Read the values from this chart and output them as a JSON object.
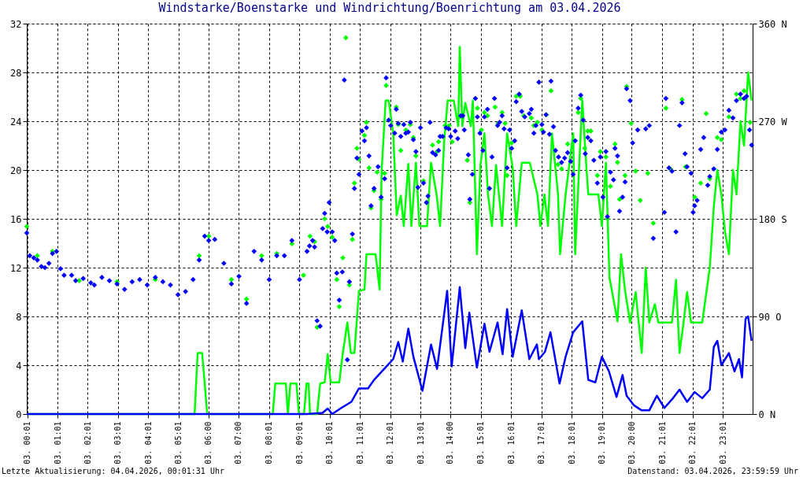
{
  "chart_data": {
    "type": "line",
    "title": "Windstarke/Boenstarke und Windrichtung/Boenrichtung am 03.04.2026",
    "annotations": [
      "Letzte Aktualisierung: 04.04.2026, 00:01:31 Uhr",
      "Datenstand: 03.04.2026, 23:59:59 Uhr"
    ],
    "xlim": [
      "2026-04-03T00:00",
      "2026-04-04T00:00"
    ],
    "xticks": [
      {
        "value": "2026-04-03T00:01",
        "label": "03. 00:01"
      },
      {
        "value": "2026-04-03T01:01",
        "label": "03. 01:01"
      },
      {
        "value": "2026-04-03T02:01",
        "label": "03. 02:01"
      },
      {
        "value": "2026-04-03T03:01",
        "label": "03. 03:01"
      },
      {
        "value": "2026-04-03T04:01",
        "label": "03. 04:01"
      },
      {
        "value": "2026-04-03T05:01",
        "label": "03. 05:01"
      },
      {
        "value": "2026-04-03T06:00",
        "label": "03. 06:00"
      },
      {
        "value": "2026-04-03T07:00",
        "label": "03. 07:00"
      },
      {
        "value": "2026-04-03T08:01",
        "label": "03. 08:01"
      },
      {
        "value": "2026-04-03T09:01",
        "label": "03. 09:01"
      },
      {
        "value": "2026-04-03T10:01",
        "label": "03. 10:01"
      },
      {
        "value": "2026-04-03T11:01",
        "label": "03. 11:01"
      },
      {
        "value": "2026-04-03T12:01",
        "label": "03. 12:01"
      },
      {
        "value": "2026-04-03T13:01",
        "label": "03. 13:01"
      },
      {
        "value": "2026-04-03T14:00",
        "label": "03. 14:00"
      },
      {
        "value": "2026-04-03T15:01",
        "label": "03. 15:01"
      },
      {
        "value": "2026-04-03T16:01",
        "label": "03. 16:01"
      },
      {
        "value": "2026-04-03T17:01",
        "label": "03. 17:01"
      },
      {
        "value": "2026-04-03T18:01",
        "label": "03. 18:01"
      },
      {
        "value": "2026-04-03T19:01",
        "label": "03. 19:01"
      },
      {
        "value": "2026-04-03T20:00",
        "label": "03. 20:00"
      },
      {
        "value": "2026-04-03T21:01",
        "label": "03. 21:01"
      },
      {
        "value": "2026-04-03T22:01",
        "label": "03. 22:01"
      },
      {
        "value": "2026-04-03T23:01",
        "label": "03. 23:01"
      }
    ],
    "ylim": [
      0,
      32
    ],
    "yticks": [
      0,
      4,
      8,
      12,
      16,
      20,
      24,
      28,
      32
    ],
    "y2lim": [
      0,
      360
    ],
    "y2ticks": [
      {
        "value": 0,
        "label": "0 N"
      },
      {
        "value": 90,
        "label": "90 O"
      },
      {
        "value": 180,
        "label": "180 S"
      },
      {
        "value": 270,
        "label": "270 W"
      },
      {
        "value": 360,
        "label": "360 N"
      }
    ],
    "grid": true,
    "series": [
      {
        "color": "#00ff00",
        "x": [
          "2026-04-03T00:00",
          "2026-04-03T05:33",
          "2026-04-03T05:39",
          "2026-04-03T05:48",
          "2026-04-03T05:58",
          "2026-04-03T08:08",
          "2026-04-03T08:13",
          "2026-04-03T08:34",
          "2026-04-03T08:38",
          "2026-04-03T08:43",
          "2026-04-03T08:55",
          "2026-04-03T09:00",
          "2026-04-03T09:10",
          "2026-04-03T09:15",
          "2026-04-03T09:19",
          "2026-04-03T09:22",
          "2026-04-03T09:36",
          "2026-04-03T09:42",
          "2026-04-03T09:51",
          "2026-04-03T09:57",
          "2026-04-03T10:03",
          "2026-04-03T10:20",
          "2026-04-03T10:27",
          "2026-04-03T10:36",
          "2026-04-03T10:43",
          "2026-04-03T10:50",
          "2026-04-03T10:59",
          "2026-04-03T11:10",
          "2026-04-03T11:14",
          "2026-04-03T11:32",
          "2026-04-03T11:40",
          "2026-04-03T11:44",
          "2026-04-03T11:52",
          "2026-04-03T11:58",
          "2026-04-03T12:07",
          "2026-04-03T12:14",
          "2026-04-03T12:22",
          "2026-04-03T12:28",
          "2026-04-03T12:37",
          "2026-04-03T12:43",
          "2026-04-03T12:52",
          "2026-04-03T12:59",
          "2026-04-03T13:14",
          "2026-04-03T13:22",
          "2026-04-03T13:33",
          "2026-04-03T13:40",
          "2026-04-03T13:48",
          "2026-04-03T13:55",
          "2026-04-03T14:07",
          "2026-04-03T14:16",
          "2026-04-03T14:19",
          "2026-04-03T14:24",
          "2026-04-03T14:30",
          "2026-04-03T14:41",
          "2026-04-03T14:45",
          "2026-04-03T14:53",
          "2026-04-03T15:00",
          "2026-04-03T15:08",
          "2026-04-03T15:15",
          "2026-04-03T15:23",
          "2026-04-03T15:31",
          "2026-04-03T15:43",
          "2026-04-03T15:53",
          "2026-04-03T16:04",
          "2026-04-03T16:11",
          "2026-04-03T16:22",
          "2026-04-03T16:38",
          "2026-04-03T16:53",
          "2026-04-03T16:59",
          "2026-04-03T17:07",
          "2026-04-03T17:14",
          "2026-04-03T17:22",
          "2026-04-03T17:34",
          "2026-04-03T17:38",
          "2026-04-03T17:49",
          "2026-04-03T18:04",
          "2026-04-03T18:08",
          "2026-04-03T18:16",
          "2026-04-03T18:22",
          "2026-04-03T18:30",
          "2026-04-03T18:34",
          "2026-04-03T18:54",
          "2026-04-03T19:01",
          "2026-04-03T19:09",
          "2026-04-03T19:16",
          "2026-04-03T19:32",
          "2026-04-03T19:39",
          "2026-04-03T19:47",
          "2026-04-03T19:57",
          "2026-04-03T20:08",
          "2026-04-03T20:20",
          "2026-04-03T20:28",
          "2026-04-03T20:35",
          "2026-04-03T20:46",
          "2026-04-03T20:53",
          "2026-04-03T21:20",
          "2026-04-03T21:28",
          "2026-04-03T21:35",
          "2026-04-03T21:43",
          "2026-04-03T21:50",
          "2026-04-03T21:58",
          "2026-04-03T22:20",
          "2026-04-03T22:35",
          "2026-04-03T22:43",
          "2026-04-03T22:50",
          "2026-04-03T22:58",
          "2026-04-03T23:05",
          "2026-04-03T23:13",
          "2026-04-03T23:21",
          "2026-04-03T23:28",
          "2026-04-03T23:36",
          "2026-04-03T23:43",
          "2026-04-03T23:51",
          "2026-04-03T23:58"
        ],
        "values": [
          0,
          0,
          5,
          5,
          0,
          0,
          2.5,
          2.5,
          0,
          2.5,
          2.5,
          0,
          0,
          2.5,
          2.5,
          0,
          0,
          2.5,
          2.6,
          4.9,
          2.6,
          2.6,
          5.0,
          7.5,
          5.0,
          5.0,
          10.1,
          10.2,
          13.1,
          13.1,
          10.2,
          19.9,
          25.7,
          25.7,
          23.0,
          16.3,
          17.9,
          15.4,
          20.5,
          15.4,
          20.6,
          15.4,
          15.4,
          20.6,
          18.0,
          15.4,
          22.3,
          25.7,
          25.7,
          23.6,
          30.1,
          23.6,
          25.5,
          23.6,
          25.7,
          13.1,
          20.4,
          23.0,
          18.0,
          15.4,
          20.4,
          15.4,
          23.0,
          20.2,
          15.4,
          20.6,
          20.6,
          18.0,
          15.4,
          18.0,
          15.4,
          23.0,
          18.0,
          13.1,
          18.0,
          23.0,
          13.1,
          20.4,
          25.7,
          20.4,
          18.0,
          18.0,
          15.4,
          20.6,
          11.2,
          7.6,
          13.1,
          10.1,
          7.5,
          10.0,
          5.0,
          12.0,
          7.5,
          9.0,
          7.5,
          7.5,
          11.0,
          5.0,
          7.5,
          10.0,
          7.5,
          7.5,
          12.0,
          17.0,
          20.0,
          18.0,
          15.0,
          13.1,
          20.0,
          18.0,
          24.0,
          22.0,
          28.0,
          25.7
        ]
      },
      {
        "color": "#0000ff",
        "x": [
          "2026-04-03T00:00",
          "2026-04-03T09:16",
          "2026-04-03T09:47",
          "2026-04-03T09:57",
          "2026-04-03T10:06",
          "2026-04-03T10:24",
          "2026-04-03T10:44",
          "2026-04-03T10:59",
          "2026-04-03T11:17",
          "2026-04-03T11:29",
          "2026-04-03T11:47",
          "2026-04-03T12:07",
          "2026-04-03T12:17",
          "2026-04-03T12:26",
          "2026-04-03T12:37",
          "2026-04-03T12:47",
          "2026-04-03T13:05",
          "2026-04-03T13:22",
          "2026-04-03T13:34",
          "2026-04-03T13:54",
          "2026-04-03T14:03",
          "2026-04-03T14:19",
          "2026-04-03T14:30",
          "2026-04-03T14:38",
          "2026-04-03T14:53",
          "2026-04-03T15:08",
          "2026-04-03T15:18",
          "2026-04-03T15:34",
          "2026-04-03T15:44",
          "2026-04-03T15:53",
          "2026-04-03T16:04",
          "2026-04-03T16:22",
          "2026-04-03T16:37",
          "2026-04-03T16:52",
          "2026-04-03T16:56",
          "2026-04-03T17:08",
          "2026-04-03T17:19",
          "2026-04-03T17:37",
          "2026-04-03T17:49",
          "2026-04-03T18:04",
          "2026-04-03T18:22",
          "2026-04-03T18:34",
          "2026-04-03T18:48",
          "2026-04-03T19:01",
          "2026-04-03T19:15",
          "2026-04-03T19:30",
          "2026-04-03T19:42",
          "2026-04-03T19:50",
          "2026-04-03T20:05",
          "2026-04-03T20:20",
          "2026-04-03T20:35",
          "2026-04-03T20:50",
          "2026-04-03T21:05",
          "2026-04-03T21:20",
          "2026-04-03T21:35",
          "2026-04-03T21:50",
          "2026-04-03T22:05",
          "2026-04-03T22:20",
          "2026-04-03T22:35",
          "2026-04-03T22:43",
          "2026-04-03T22:50",
          "2026-04-03T22:58",
          "2026-04-03T23:13",
          "2026-04-03T23:24",
          "2026-04-03T23:33",
          "2026-04-03T23:39",
          "2026-04-03T23:46",
          "2026-04-03T23:51",
          "2026-04-03T23:58"
        ],
        "values": [
          0,
          0,
          0.1,
          0.45,
          0,
          0.5,
          1.0,
          2.1,
          2.1,
          2.8,
          3.6,
          4.5,
          5.9,
          4.3,
          7.0,
          4.7,
          1.9,
          5.7,
          3.7,
          10.1,
          3.9,
          10.4,
          5.4,
          8.3,
          3.8,
          7.4,
          5.1,
          7.5,
          4.9,
          8.6,
          4.7,
          8.5,
          4.5,
          5.7,
          4.5,
          5.1,
          6.7,
          2.5,
          4.7,
          6.7,
          7.6,
          2.8,
          2.6,
          4.7,
          3.5,
          1.4,
          3.2,
          1.5,
          0.7,
          0.3,
          0.3,
          1.5,
          0.5,
          1.2,
          2.0,
          1.0,
          1.8,
          1.3,
          2.0,
          5.5,
          6.0,
          4.0,
          5.0,
          3.5,
          4.5,
          3.0,
          7.8,
          8.0,
          6.0
        ]
      },
      {
        "type": "scatter",
        "axis": "y2",
        "marker": "diamond",
        "color": "#00ff00",
        "x": [
          "2026-04-03T00:00",
          "2026-04-03T00:21",
          "2026-04-03T00:51",
          "2026-04-03T01:44",
          "2026-04-03T02:59",
          "2026-04-03T04:15",
          "2026-04-03T05:42",
          "2026-04-03T06:01",
          "2026-04-03T06:46",
          "2026-04-03T07:16",
          "2026-04-03T07:46",
          "2026-04-03T08:16",
          "2026-04-03T08:46",
          "2026-04-03T09:09",
          "2026-04-03T09:22",
          "2026-04-03T09:31",
          "2026-04-03T09:36",
          "2026-04-03T09:51",
          "2026-04-03T09:57",
          "2026-04-03T10:06",
          "2026-04-03T10:15",
          "2026-04-03T10:20",
          "2026-04-03T10:27",
          "2026-04-03T10:33",
          "2026-04-03T10:40",
          "2026-04-03T10:46",
          "2026-04-03T10:50",
          "2026-04-03T10:55",
          "2026-04-03T10:59",
          "2026-04-03T11:10",
          "2026-04-03T11:14",
          "2026-04-03T11:19",
          "2026-04-03T11:23",
          "2026-04-03T11:29",
          "2026-04-03T11:35",
          "2026-04-03T11:43",
          "2026-04-03T11:50",
          "2026-04-03T11:53",
          "2026-04-03T12:13",
          "2026-04-03T12:17",
          "2026-04-03T12:22",
          "2026-04-03T12:32",
          "2026-04-03T12:41",
          "2026-04-03T12:47",
          "2026-04-03T12:52",
          "2026-04-03T13:07",
          "2026-04-03T13:13",
          "2026-04-03T13:25",
          "2026-04-03T13:34",
          "2026-04-03T13:37",
          "2026-04-03T13:50",
          "2026-04-03T13:58",
          "2026-04-03T14:04",
          "2026-04-03T14:18",
          "2026-04-03T14:34",
          "2026-04-03T14:39",
          "2026-04-03T14:54",
          "2026-04-03T15:02",
          "2026-04-03T15:08",
          "2026-04-03T15:14",
          "2026-04-03T15:29",
          "2026-04-03T15:35",
          "2026-04-03T15:43",
          "2026-04-03T15:49",
          "2026-04-03T15:53",
          "2026-04-03T16:02",
          "2026-04-03T16:11",
          "2026-04-03T16:19",
          "2026-04-03T16:26",
          "2026-04-03T16:41",
          "2026-04-03T16:46",
          "2026-04-03T16:53",
          "2026-04-03T17:02",
          "2026-04-03T17:11",
          "2026-04-03T17:20",
          "2026-04-03T17:34",
          "2026-04-03T17:41",
          "2026-04-03T17:53",
          "2026-04-03T18:14",
          "2026-04-03T18:19",
          "2026-04-03T18:27",
          "2026-04-03T18:33",
          "2026-04-03T18:39",
          "2026-04-03T18:52",
          "2026-04-03T18:58",
          "2026-04-03T19:09",
          "2026-04-03T19:12",
          "2026-04-03T19:18",
          "2026-04-03T19:27",
          "2026-04-03T19:32",
          "2026-04-03T19:36",
          "2026-04-03T19:47",
          "2026-04-03T19:50",
          "2026-04-03T19:59",
          "2026-04-03T20:08",
          "2026-04-03T20:17",
          "2026-04-03T20:32",
          "2026-04-03T20:43",
          "2026-04-03T21:08",
          "2026-04-03T21:17",
          "2026-04-03T21:40",
          "2026-04-03T21:47",
          "2026-04-03T21:58",
          "2026-04-03T22:05",
          "2026-04-03T22:17",
          "2026-04-03T22:28",
          "2026-04-03T22:35",
          "2026-04-03T22:50",
          "2026-04-03T22:58",
          "2026-04-03T23:13",
          "2026-04-03T23:28",
          "2026-04-03T23:36",
          "2026-04-03T23:43",
          "2026-04-03T23:55"
        ],
        "values": [
          173,
          146,
          150,
          123,
          122,
          124,
          146,
          164,
          124,
          106,
          146,
          148,
          157,
          128,
          164,
          159,
          80,
          180,
          173,
          163,
          124,
          99,
          144,
          347,
          119,
          161,
          213,
          245,
          235,
          257,
          269,
          227,
          190,
          206,
          223,
          198,
          222,
          303,
          283,
          267,
          243,
          262,
          267,
          255,
          238,
          215,
          195,
          248,
          242,
          251,
          266,
          266,
          251,
          274,
          234,
          195,
          282,
          262,
          278,
          275,
          283,
          268,
          278,
          268,
          220,
          250,
          293,
          293,
          275,
          273,
          266,
          269,
          262,
          276,
          298,
          230,
          226,
          249,
          278,
          291,
          245,
          261,
          261,
          220,
          242,
          237,
          180,
          210,
          249,
          232,
          198,
          220,
          302,
          268,
          224,
          197,
          222,
          176,
          282,
          226,
          290,
          228,
          null,
          200,
          213,
          277,
          217,
          255,
          253,
          274,
          295,
          291,
          298,
          269
        ]
      },
      {
        "type": "scatter",
        "axis": "y2",
        "marker": "diamond",
        "color": "#0000ff",
        "x": [
          "2026-04-03T00:00",
          "2026-04-03T00:06",
          "2026-04-03T00:14",
          "2026-04-03T00:21",
          "2026-04-03T00:29",
          "2026-04-03T00:36",
          "2026-04-03T00:44",
          "2026-04-03T00:51",
          "2026-04-03T00:59",
          "2026-04-03T01:07",
          "2026-04-03T01:14",
          "2026-04-03T01:29",
          "2026-04-03T01:37",
          "2026-04-03T01:52",
          "2026-04-03T02:07",
          "2026-04-03T02:14",
          "2026-04-03T02:29",
          "2026-04-03T02:44",
          "2026-04-03T02:59",
          "2026-04-03T03:14",
          "2026-04-03T03:29",
          "2026-04-03T03:44",
          "2026-04-03T03:59",
          "2026-04-03T04:15",
          "2026-04-03T04:30",
          "2026-04-03T04:45",
          "2026-04-03T05:00",
          "2026-04-03T05:15",
          "2026-04-03T05:30",
          "2026-04-03T05:42",
          "2026-04-03T05:53",
          "2026-04-03T06:01",
          "2026-04-03T06:13",
          "2026-04-03T06:31",
          "2026-04-03T06:46",
          "2026-04-03T07:01",
          "2026-04-03T07:16",
          "2026-04-03T07:31",
          "2026-04-03T07:46",
          "2026-04-03T08:01",
          "2026-04-03T08:16",
          "2026-04-03T08:31",
          "2026-04-03T08:46",
          "2026-04-03T09:01",
          "2026-04-03T09:16",
          "2026-04-03T09:21",
          "2026-04-03T09:27",
          "2026-04-03T09:31",
          "2026-04-03T09:36",
          "2026-04-03T09:42",
          "2026-04-03T09:47",
          "2026-04-03T09:51",
          "2026-04-03T09:56",
          "2026-04-03T10:00",
          "2026-04-03T10:06",
          "2026-04-03T10:11",
          "2026-04-03T10:15",
          "2026-04-03T10:20",
          "2026-04-03T10:26",
          "2026-04-03T10:30",
          "2026-04-03T10:36",
          "2026-04-03T10:40",
          "2026-04-03T10:46",
          "2026-04-03T10:50",
          "2026-04-03T10:55",
          "2026-04-03T10:59",
          "2026-04-03T11:05",
          "2026-04-03T11:10",
          "2026-04-03T11:14",
          "2026-04-03T11:19",
          "2026-04-03T11:23",
          "2026-04-03T11:29",
          "2026-04-03T11:37",
          "2026-04-03T11:43",
          "2026-04-03T11:50",
          "2026-04-03T11:53",
          "2026-04-03T11:58",
          "2026-04-03T12:02",
          "2026-04-03T12:10",
          "2026-04-03T12:13",
          "2026-04-03T12:17",
          "2026-04-03T12:22",
          "2026-04-03T12:28",
          "2026-04-03T12:32",
          "2026-04-03T12:37",
          "2026-04-03T12:41",
          "2026-04-03T12:47",
          "2026-04-03T12:52",
          "2026-04-03T12:56",
          "2026-04-03T13:01",
          "2026-04-03T13:07",
          "2026-04-03T13:13",
          "2026-04-03T13:16",
          "2026-04-03T13:20",
          "2026-04-03T13:25",
          "2026-04-03T13:31",
          "2026-04-03T13:37",
          "2026-04-03T13:40",
          "2026-04-03T13:45",
          "2026-04-03T13:52",
          "2026-04-03T13:57",
          "2026-04-03T14:01",
          "2026-04-03T14:10",
          "2026-04-03T14:15",
          "2026-04-03T14:21",
          "2026-04-03T14:25",
          "2026-04-03T14:28",
          "2026-04-03T14:36",
          "2026-04-03T14:39",
          "2026-04-03T14:44",
          "2026-04-03T14:50",
          "2026-04-03T14:54",
          "2026-04-03T14:59",
          "2026-04-03T15:05",
          "2026-04-03T15:08",
          "2026-04-03T15:14",
          "2026-04-03T15:18",
          "2026-04-03T15:23",
          "2026-04-03T15:28",
          "2026-04-03T15:34",
          "2026-04-03T15:38",
          "2026-04-03T15:43",
          "2026-04-03T15:47",
          "2026-04-03T15:53",
          "2026-04-03T15:58",
          "2026-04-03T16:02",
          "2026-04-03T16:08",
          "2026-04-03T16:11",
          "2026-04-03T16:17",
          "2026-04-03T16:22",
          "2026-04-03T16:28",
          "2026-04-03T16:37",
          "2026-04-03T16:41",
          "2026-04-03T16:46",
          "2026-04-03T16:50",
          "2026-04-03T16:56",
          "2026-04-03T17:02",
          "2026-04-03T17:05",
          "2026-04-03T17:10",
          "2026-04-03T17:17",
          "2026-04-03T17:20",
          "2026-04-03T17:25",
          "2026-04-03T17:29",
          "2026-04-03T17:35",
          "2026-04-03T17:41",
          "2026-04-03T17:47",
          "2026-04-03T17:53",
          "2026-04-03T17:59",
          "2026-04-03T18:04",
          "2026-04-03T18:08",
          "2026-04-03T18:14",
          "2026-04-03T18:19",
          "2026-04-03T18:24",
          "2026-04-03T18:28",
          "2026-04-03T18:33",
          "2026-04-03T18:39",
          "2026-04-03T18:45",
          "2026-04-03T18:52",
          "2026-04-03T18:58",
          "2026-04-03T19:03",
          "2026-04-03T19:09",
          "2026-04-03T19:12",
          "2026-04-03T19:18",
          "2026-04-03T19:24",
          "2026-04-03T19:27",
          "2026-04-03T19:32",
          "2026-04-03T19:36",
          "2026-04-03T19:42",
          "2026-04-03T19:47",
          "2026-04-03T19:50",
          "2026-04-03T19:57",
          "2026-04-03T20:02",
          "2026-04-03T20:12",
          "2026-04-03T20:28",
          "2026-04-03T20:35",
          "2026-04-03T20:43",
          "2026-04-03T21:05",
          "2026-04-03T21:08",
          "2026-04-03T21:14",
          "2026-04-03T21:20",
          "2026-04-03T21:28",
          "2026-04-03T21:35",
          "2026-04-03T21:40",
          "2026-04-03T21:46",
          "2026-04-03T21:50",
          "2026-04-03T21:58",
          "2026-04-03T22:02",
          "2026-04-03T22:05",
          "2026-04-03T22:10",
          "2026-04-03T22:17",
          "2026-04-03T22:23",
          "2026-04-03T22:31",
          "2026-04-03T22:35",
          "2026-04-03T22:43",
          "2026-04-03T22:50",
          "2026-04-03T22:58",
          "2026-04-03T23:05",
          "2026-04-03T23:13",
          "2026-04-03T23:21",
          "2026-04-03T23:28",
          "2026-04-03T23:36",
          "2026-04-03T23:43",
          "2026-04-03T23:48",
          "2026-04-03T23:54",
          "2026-04-03T23:58"
        ],
        "values": [
          167,
          146,
          144,
          142,
          136,
          135,
          139,
          148,
          150,
          134,
          128,
          128,
          123,
          125,
          121,
          119,
          126,
          123,
          120,
          115,
          122,
          124,
          119,
          126,
          122,
          119,
          110,
          113,
          124,
          142,
          164,
          160,
          161,
          139,
          120,
          127,
          102,
          150,
          142,
          124,
          146,
          146,
          160,
          124,
          150,
          155,
          160,
          154,
          86,
          81,
          171,
          185,
          168,
          195,
          168,
          160,
          130,
          105,
          131,
          308,
          50,
          122,
          166,
          208,
          236,
          221,
          261,
          252,
          264,
          238,
          192,
          208,
          228,
          200,
          217,
          310,
          271,
          266,
          259,
          281,
          268,
          256,
          267,
          259,
          260,
          269,
          253,
          242,
          209,
          264,
          213,
          195,
          201,
          269,
          241,
          239,
          243,
          256,
          256,
          264,
          263,
          256,
          261,
          254,
          275,
          275,
          262,
          239,
          198,
          221,
          291,
          274,
          259,
          243,
          274,
          281,
          208,
          237,
          291,
          266,
          269,
          275,
          263,
          227,
          262,
          245,
          252,
          288,
          295,
          279,
          274,
          277,
          281,
          259,
          266,
          306,
          267,
          260,
          276,
          258,
          307,
          265,
          243,
          237,
          232,
          236,
          241,
          233,
          221,
          252,
          282,
          294,
          271,
          240,
          255,
          252,
          234,
          213,
          237,
          200,
          242,
          182,
          223,
          216,
          245,
          238,
          187,
          200,
          214,
          300,
          289,
          250,
          262,
          263,
          266,
          162,
          186,
          291,
          227,
          224,
          168,
          266,
          287,
          240,
          228,
          222,
          186,
          192,
          197,
          244,
          255,
          211,
          219,
          226,
          244,
          260,
          262,
          280,
          273,
          289,
          295,
          291,
          293,
          262,
          248
        ]
      }
    ]
  }
}
